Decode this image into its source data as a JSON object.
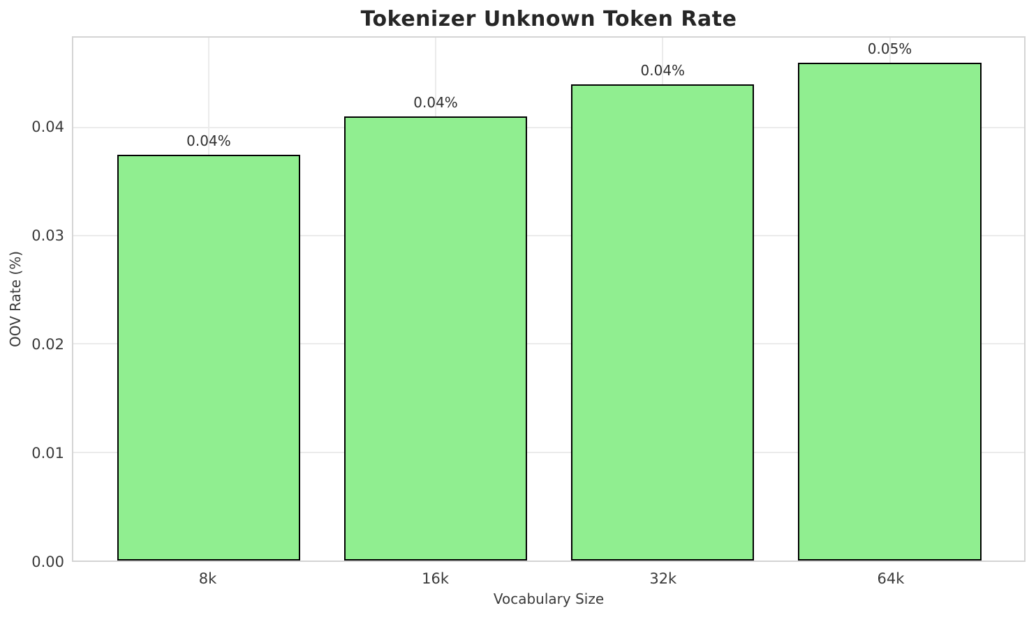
{
  "chart_data": {
    "type": "bar",
    "title": "Tokenizer Unknown Token Rate",
    "xlabel": "Vocabulary Size",
    "ylabel": "OOV Rate (%)",
    "categories": [
      "8k",
      "16k",
      "32k",
      "64k"
    ],
    "values": [
      0.0375,
      0.041,
      0.044,
      0.046
    ],
    "bar_labels": [
      "0.04%",
      "0.04%",
      "0.04%",
      "0.05%"
    ],
    "ytick_labels": [
      "0.00",
      "0.01",
      "0.02",
      "0.03",
      "0.04"
    ],
    "ytick_values": [
      0.0,
      0.01,
      0.02,
      0.03,
      0.04
    ],
    "ylim": [
      0,
      0.0483
    ],
    "grid": "both",
    "legend": "none",
    "bar_color": "#90EE90",
    "bar_edge_color": "#000000",
    "grid_color": "#ebebeb",
    "spine_color": "#d4d4d4",
    "title_color": "#262626",
    "text_color": "#3a3a3a"
  }
}
